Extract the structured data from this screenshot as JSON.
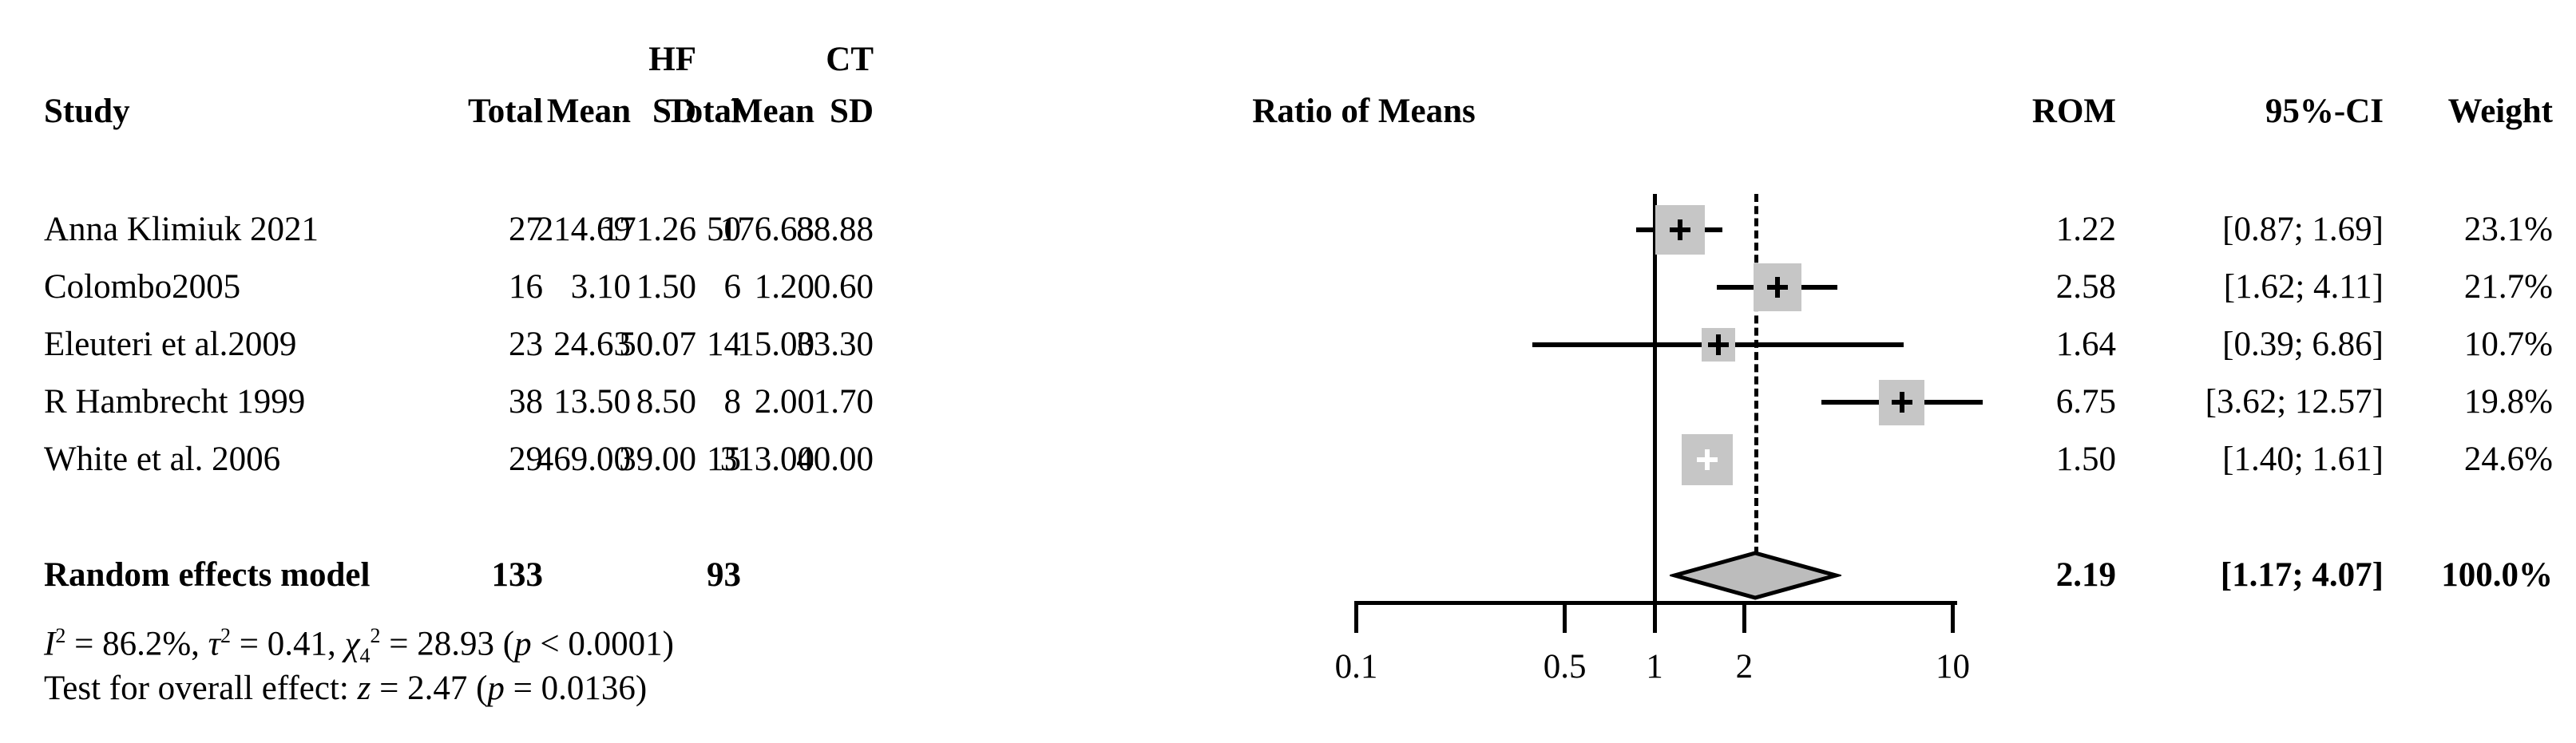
{
  "table": {
    "headers": {
      "study": "Study",
      "hf": {
        "label": "HF",
        "total": "Total",
        "mean": "Mean",
        "sd": "SD"
      },
      "ct": {
        "label": "CT",
        "total": "Total",
        "mean": "Mean",
        "sd": "SD"
      },
      "plot": "Ratio of Means",
      "rom": "ROM",
      "ci": "95%-CI",
      "weight": "Weight"
    },
    "rows": [
      {
        "study": "Anna Klimiuk 2021",
        "total_hf": "27",
        "mean_hf": "214.69",
        "sd_hf": "171.26",
        "total_ct": "50",
        "mean_ct": "176.63",
        "sd_ct": "88.88",
        "rom": "1.22",
        "ci": "[0.87; 1.69]",
        "weight": "23.1%"
      },
      {
        "study": "Colombo2005",
        "total_hf": "16",
        "mean_hf": "3.10",
        "sd_hf": "1.50",
        "total_ct": "6",
        "mean_ct": "1.20",
        "sd_ct": "0.60",
        "rom": "2.58",
        "ci": "[1.62; 4.11]",
        "weight": "21.7%"
      },
      {
        "study": "Eleuteri et al.2009",
        "total_hf": "23",
        "mean_hf": "24.63",
        "sd_hf": "50.07",
        "total_ct": "14",
        "mean_ct": "15.00",
        "sd_ct": "33.30",
        "rom": "1.64",
        "ci": "[0.39; 6.86]",
        "weight": "10.7%"
      },
      {
        "study": "R Hambrecht 1999",
        "total_hf": "38",
        "mean_hf": "13.50",
        "sd_hf": "8.50",
        "total_ct": "8",
        "mean_ct": "2.00",
        "sd_ct": "1.70",
        "rom": "6.75",
        "ci": "[3.62; 12.57]",
        "weight": "19.8%"
      },
      {
        "study": "White et al. 2006",
        "total_hf": "29",
        "mean_hf": "469.00",
        "sd_hf": "39.00",
        "total_ct": "15",
        "mean_ct": "313.00",
        "sd_ct": "40.00",
        "rom": "1.50",
        "ci": "[1.40; 1.61]",
        "weight": "24.6%"
      }
    ],
    "pooled": {
      "study": "Random effects model",
      "total_hf": "133",
      "total_ct": "93",
      "rom": "2.19",
      "ci": "[1.17; 4.07]",
      "weight": "100.0%"
    },
    "stats": {
      "heterogeneity_html": "<i>I</i><sup>2</sup> = 86.2%, <i>&#964;</i><sup>2</sup> = 0.41, <i>&#967;</i><sub>4</sub><sup>2</sup> = 28.93 (<i>p</i> &lt; 0.0001)",
      "overall_test_html": "Test for overall effect: <i>z</i> = 2.47 (<i>p</i> = 0.0136)"
    }
  },
  "chart_data": {
    "type": "forest",
    "effect_measure": "Ratio of Means",
    "x_scale": "log",
    "x_range": [
      0.1,
      10
    ],
    "x_ticks": [
      0.1,
      0.5,
      1,
      2,
      10
    ],
    "ref_line": 1,
    "grid": false,
    "studies": [
      {
        "name": "Anna Klimiuk 2021",
        "rom": 1.22,
        "ci_low": 0.87,
        "ci_high": 1.69,
        "weight_pct": 23.1
      },
      {
        "name": "Colombo2005",
        "rom": 2.58,
        "ci_low": 1.62,
        "ci_high": 4.11,
        "weight_pct": 21.7
      },
      {
        "name": "Eleuteri et al.2009",
        "rom": 1.64,
        "ci_low": 0.39,
        "ci_high": 6.86,
        "weight_pct": 10.7
      },
      {
        "name": "R Hambrecht 1999",
        "rom": 6.75,
        "ci_low": 3.62,
        "ci_high": 12.57,
        "weight_pct": 19.8
      },
      {
        "name": "White et al. 2006",
        "rom": 1.5,
        "ci_low": 1.4,
        "ci_high": 1.61,
        "weight_pct": 24.6
      }
    ],
    "pooled": {
      "name": "Random effects model",
      "rom": 2.19,
      "ci_low": 1.17,
      "ci_high": 4.07,
      "weight_pct": 100.0
    },
    "colors": {
      "square_fill": "#c6c6c6",
      "diamond_fill": "#bcbcbc",
      "line": "#000000"
    }
  }
}
